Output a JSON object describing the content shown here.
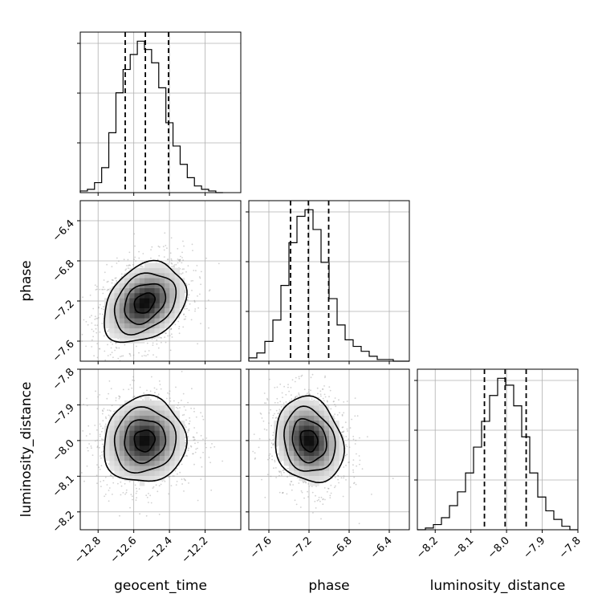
{
  "chart_data": {
    "type": "corner",
    "params": [
      "geocent_time",
      "phase",
      "luminosity_distance"
    ],
    "axes": {
      "geocent_time": {
        "label": "geocent_time",
        "range": [
          -12.9,
          -12.0
        ],
        "ticks": [
          -12.8,
          -12.6,
          -12.4,
          -12.2
        ],
        "tick_labels": [
          "−12.8",
          "−12.6",
          "−12.4",
          "−12.2"
        ]
      },
      "phase": {
        "label": "phase",
        "range": [
          -7.8,
          -6.2
        ],
        "ticks": [
          -7.6,
          -7.2,
          -6.8,
          -6.4
        ],
        "tick_labels": [
          "−7.6",
          "−7.2",
          "−6.8",
          "−6.4"
        ]
      },
      "luminosity_distance": {
        "label": "luminosity_distance",
        "range": [
          -8.25,
          -7.8
        ],
        "ticks": [
          -8.2,
          -8.1,
          -8.0,
          -7.9,
          -7.8
        ],
        "tick_labels": [
          "−8.2",
          "−8.1",
          "−8.0",
          "−7.9",
          "−7.8"
        ]
      }
    },
    "histograms": [
      {
        "param": "geocent_time",
        "bin_edges": [
          -12.9,
          -12.86,
          -12.82,
          -12.78,
          -12.74,
          -12.7,
          -12.66,
          -12.62,
          -12.58,
          -12.54,
          -12.5,
          -12.46,
          -12.42,
          -12.38,
          -12.34,
          -12.3,
          -12.26,
          -12.22,
          -12.18,
          -12.14,
          -12.1
        ],
        "counts": [
          1,
          2,
          6,
          15,
          36,
          60,
          74,
          83,
          91,
          86,
          78,
          63,
          42,
          28,
          17,
          9,
          4,
          2,
          1,
          0
        ],
        "quantiles": [
          -12.648,
          -12.535,
          -12.405
        ]
      },
      {
        "param": "phase",
        "bin_edges": [
          -7.8,
          -7.72,
          -7.64,
          -7.56,
          -7.48,
          -7.4,
          -7.32,
          -7.24,
          -7.16,
          -7.08,
          -7.0,
          -6.92,
          -6.84,
          -6.76,
          -6.68,
          -6.6,
          -6.52,
          -6.44,
          -6.36,
          -6.28,
          -6.2
        ],
        "counts": [
          2,
          5,
          12,
          25,
          46,
          72,
          88,
          92,
          80,
          60,
          38,
          22,
          13,
          9,
          6,
          3,
          1,
          1,
          0,
          0
        ],
        "quantiles": [
          -7.384,
          -7.206,
          -7.004
        ]
      },
      {
        "param": "luminosity_distance",
        "bin_edges": [
          -8.25,
          -8.2275,
          -8.205,
          -8.1825,
          -8.16,
          -8.1375,
          -8.115,
          -8.0925,
          -8.07,
          -8.0475,
          -8.025,
          -8.0025,
          -7.98,
          -7.9575,
          -7.935,
          -7.9125,
          -7.89,
          -7.8675,
          -7.845,
          -7.8225,
          -7.8
        ],
        "counts": [
          0,
          1,
          3,
          7,
          14,
          22,
          33,
          48,
          63,
          78,
          88,
          84,
          72,
          54,
          33,
          19,
          11,
          6,
          2,
          0
        ],
        "quantiles": [
          -8.062,
          -8.004,
          -7.945
        ]
      }
    ],
    "joint": [
      {
        "x": "geocent_time",
        "y": "phase",
        "mean": [
          -12.54,
          -7.22
        ],
        "sigma": [
          0.115,
          0.2
        ],
        "rho": 0.3,
        "levels": [
          0.5,
          1.0,
          1.5,
          2.0
        ]
      },
      {
        "x": "geocent_time",
        "y": "luminosity_distance",
        "mean": [
          -12.54,
          -8.0
        ],
        "sigma": [
          0.115,
          0.06
        ],
        "rho": 0.05,
        "levels": [
          0.5,
          1.0,
          1.5,
          2.0
        ]
      },
      {
        "x": "phase",
        "y": "luminosity_distance",
        "mean": [
          -7.2,
          -8.0
        ],
        "sigma": [
          0.17,
          0.06
        ],
        "rho": -0.15,
        "levels": [
          0.5,
          1.0,
          1.5,
          2.0
        ]
      }
    ],
    "grid": true
  }
}
